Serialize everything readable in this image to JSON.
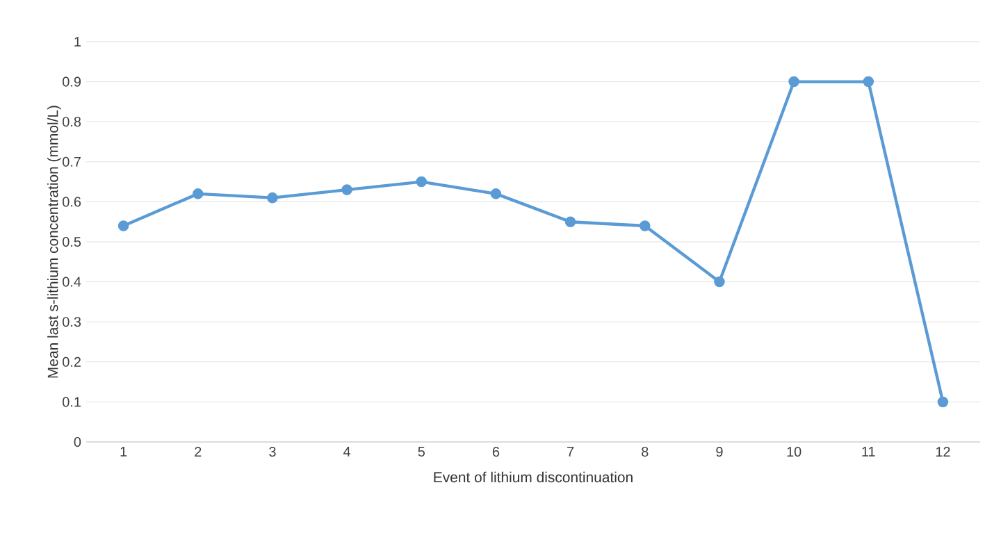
{
  "chart_data": {
    "type": "line",
    "xlabel": "Event of lithium discontinuation",
    "ylabel": "Mean last s-lithium concentration (mmol/L)",
    "categories": [
      "1",
      "2",
      "3",
      "4",
      "5",
      "6",
      "7",
      "8",
      "9",
      "10",
      "11",
      "12"
    ],
    "series": [
      {
        "color": "#5b9bd5",
        "values": [
          0.54,
          0.62,
          0.61,
          0.63,
          0.65,
          0.62,
          0.55,
          0.54,
          0.4,
          0.9,
          0.9,
          0.1
        ]
      }
    ],
    "ylim": [
      0,
      1
    ],
    "yticks": [
      0,
      0.1,
      0.2,
      0.3,
      0.4,
      0.5,
      0.6,
      0.7,
      0.8,
      0.9,
      1
    ],
    "grid": "y",
    "marker": "circle",
    "line_style": "solid"
  }
}
